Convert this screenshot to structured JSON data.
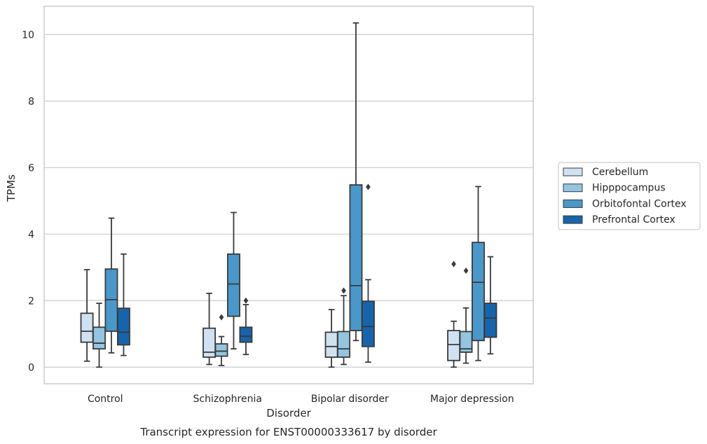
{
  "chart_data": {
    "type": "box",
    "caption": "Transcript expression for ENST00000333617 by disorder",
    "xlabel": "Disorder",
    "ylabel": "TPMs",
    "ylim": [
      -0.5,
      10.85
    ],
    "yticks": [
      0,
      2,
      4,
      6,
      8,
      10
    ],
    "grid": true,
    "legend_position": "right",
    "categories": [
      "Control",
      "Schizophrenia",
      "Bipolar disorder",
      "Major depression"
    ],
    "series": [
      {
        "name": "Cerebellum",
        "color": "#d0e1f2",
        "boxes": [
          {
            "whislo": 0.18,
            "q1": 0.75,
            "med": 1.08,
            "q3": 1.62,
            "whishi": 2.93,
            "fliers": []
          },
          {
            "whislo": 0.08,
            "q1": 0.3,
            "med": 0.45,
            "q3": 1.17,
            "whishi": 2.22,
            "fliers": []
          },
          {
            "whislo": 0.0,
            "q1": 0.3,
            "med": 0.62,
            "q3": 1.05,
            "whishi": 1.73,
            "fliers": []
          },
          {
            "whislo": 0.0,
            "q1": 0.2,
            "med": 0.68,
            "q3": 1.1,
            "whishi": 1.38,
            "fliers": [
              3.1
            ]
          }
        ]
      },
      {
        "name": "Hipppocampus",
        "color": "#94c4df",
        "boxes": [
          {
            "whislo": 0.0,
            "q1": 0.55,
            "med": 0.72,
            "q3": 1.2,
            "whishi": 1.92,
            "fliers": []
          },
          {
            "whislo": 0.05,
            "q1": 0.33,
            "med": 0.48,
            "q3": 0.7,
            "whishi": 0.92,
            "fliers": [
              1.5
            ]
          },
          {
            "whislo": 0.08,
            "q1": 0.3,
            "med": 0.55,
            "q3": 1.07,
            "whishi": 2.15,
            "fliers": [
              2.3
            ]
          },
          {
            "whislo": 0.12,
            "q1": 0.45,
            "med": 0.55,
            "q3": 1.07,
            "whishi": 1.78,
            "fliers": [
              2.9
            ]
          }
        ]
      },
      {
        "name": "Orbitofontal Cortex",
        "color": "#4a98c9",
        "boxes": [
          {
            "whislo": 0.43,
            "q1": 1.08,
            "med": 2.03,
            "q3": 2.95,
            "whishi": 4.48,
            "fliers": []
          },
          {
            "whislo": 0.55,
            "q1": 1.53,
            "med": 2.5,
            "q3": 3.4,
            "whishi": 4.65,
            "fliers": []
          },
          {
            "whislo": 0.8,
            "q1": 1.1,
            "med": 2.45,
            "q3": 5.48,
            "whishi": 10.35,
            "fliers": []
          },
          {
            "whislo": 0.2,
            "q1": 0.8,
            "med": 2.55,
            "q3": 3.75,
            "whishi": 5.43,
            "fliers": []
          }
        ]
      },
      {
        "name": "Prefrontal Cortex",
        "color": "#1764ab",
        "boxes": [
          {
            "whislo": 0.35,
            "q1": 0.67,
            "med": 1.05,
            "q3": 1.77,
            "whishi": 3.4,
            "fliers": []
          },
          {
            "whislo": 0.38,
            "q1": 0.75,
            "med": 0.93,
            "q3": 1.2,
            "whishi": 1.88,
            "fliers": [
              2.0
            ]
          },
          {
            "whislo": 0.15,
            "q1": 0.62,
            "med": 1.22,
            "q3": 1.98,
            "whishi": 2.63,
            "fliers": [
              5.42
            ]
          },
          {
            "whislo": 0.4,
            "q1": 0.9,
            "med": 1.48,
            "q3": 1.92,
            "whishi": 3.32,
            "fliers": []
          }
        ]
      }
    ]
  },
  "colors": {
    "grid": "#cccccc",
    "frame": "#cccccc",
    "line": "#3a3a3a",
    "legend_border": "#cccccc"
  }
}
